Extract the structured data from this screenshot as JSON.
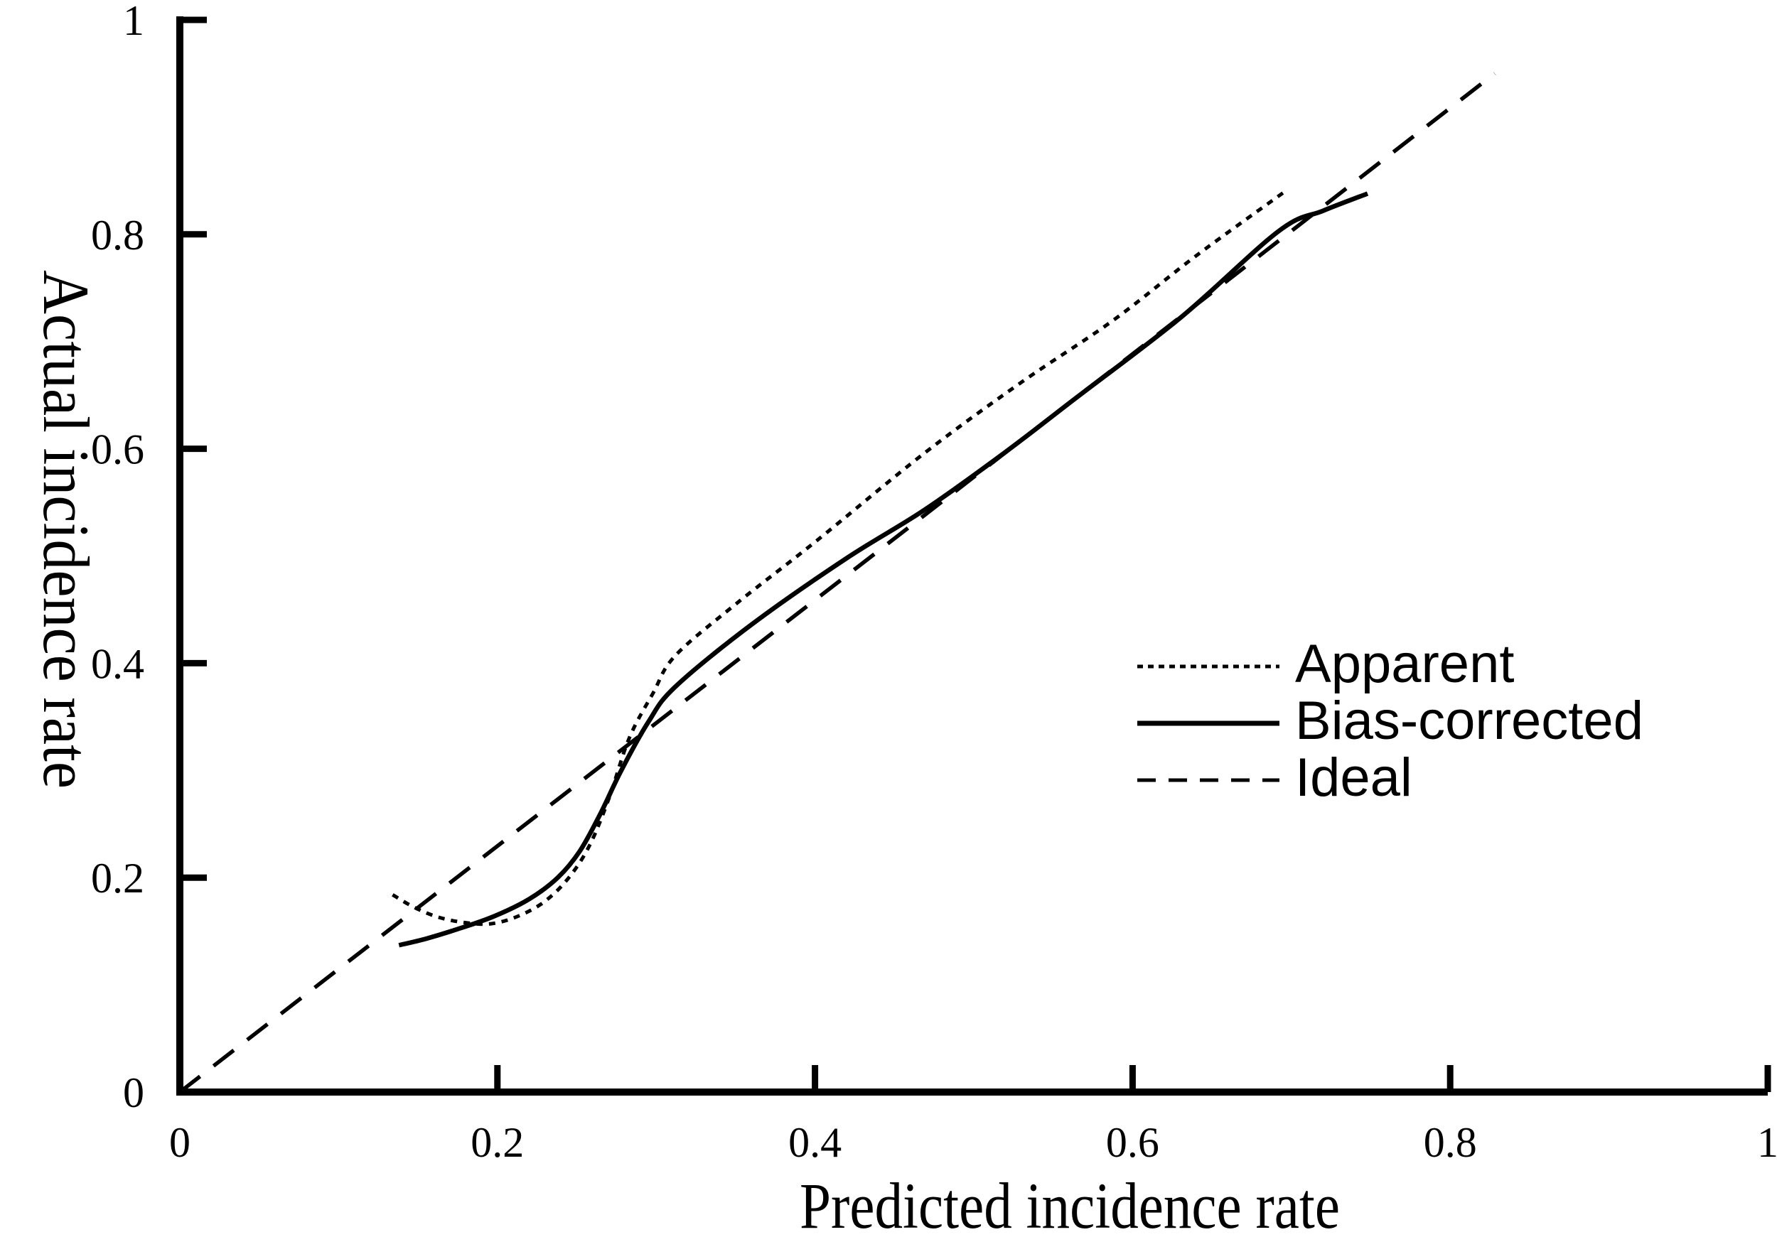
{
  "figure": {
    "background_color": "#ffffff",
    "ink_color": "#000000"
  },
  "chart_data": {
    "type": "line",
    "title": "",
    "xlabel": "Predicted incidence rate",
    "ylabel": "Actual incidence rate",
    "xlim": [
      0,
      1
    ],
    "ylim": [
      0,
      1
    ],
    "grid": false,
    "legend_position": "center-right",
    "x_ticks": [
      0,
      0.2,
      0.4,
      0.6,
      0.8,
      1
    ],
    "x_tick_labels": [
      "0",
      "0.2",
      "0.4",
      "0.6",
      "0.8",
      "1"
    ],
    "y_ticks": [
      0,
      0.2,
      0.4,
      0.6,
      0.8,
      1
    ],
    "y_tick_labels": [
      "0",
      "0.2",
      "0.4",
      "0.6",
      "0.8",
      "1"
    ],
    "series": [
      {
        "name": "Apparent",
        "style": "dotted",
        "points": [
          [
            0.134,
            0.184
          ],
          [
            0.148,
            0.172
          ],
          [
            0.163,
            0.163
          ],
          [
            0.18,
            0.158
          ],
          [
            0.196,
            0.157
          ],
          [
            0.213,
            0.164
          ],
          [
            0.23,
            0.178
          ],
          [
            0.245,
            0.2
          ],
          [
            0.258,
            0.23
          ],
          [
            0.27,
            0.273
          ],
          [
            0.283,
            0.33
          ],
          [
            0.298,
            0.372
          ],
          [
            0.312,
            0.407
          ],
          [
            0.35,
            0.455
          ],
          [
            0.4,
            0.513
          ],
          [
            0.469,
            0.596
          ],
          [
            0.53,
            0.662
          ],
          [
            0.588,
            0.72
          ],
          [
            0.64,
            0.78
          ],
          [
            0.696,
            0.84
          ]
        ]
      },
      {
        "name": "Bias-corrected",
        "style": "solid",
        "points": [
          [
            0.138,
            0.137
          ],
          [
            0.155,
            0.143
          ],
          [
            0.175,
            0.152
          ],
          [
            0.198,
            0.164
          ],
          [
            0.22,
            0.18
          ],
          [
            0.238,
            0.2
          ],
          [
            0.252,
            0.225
          ],
          [
            0.265,
            0.26
          ],
          [
            0.278,
            0.3
          ],
          [
            0.295,
            0.345
          ],
          [
            0.312,
            0.378
          ],
          [
            0.36,
            0.436
          ],
          [
            0.42,
            0.498
          ],
          [
            0.469,
            0.543
          ],
          [
            0.52,
            0.597
          ],
          [
            0.564,
            0.647
          ],
          [
            0.63,
            0.722
          ],
          [
            0.692,
            0.803
          ],
          [
            0.72,
            0.822
          ],
          [
            0.748,
            0.838
          ]
        ]
      },
      {
        "name": "Ideal",
        "style": "dashed",
        "points": [
          [
            0.0,
            0.0
          ],
          [
            0.828,
            0.95
          ]
        ]
      }
    ]
  },
  "legend": {
    "items": [
      {
        "label": "Apparent",
        "style": "dotted"
      },
      {
        "label": "Bias-corrected",
        "style": "solid"
      },
      {
        "label": "Ideal",
        "style": "dashed"
      }
    ]
  }
}
